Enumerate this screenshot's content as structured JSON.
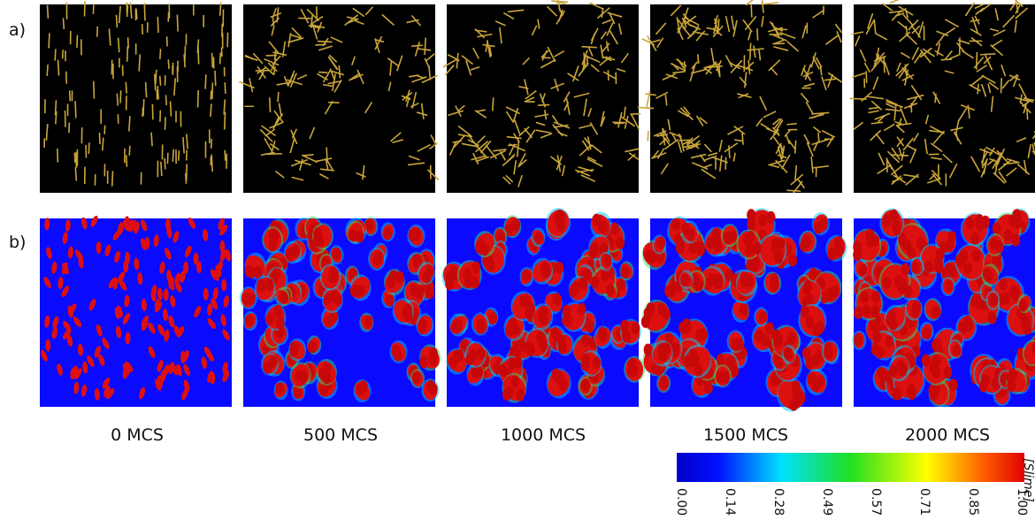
{
  "row_labels": [
    "a)",
    "b)"
  ],
  "column_labels": [
    "0 MCS",
    "500 MCS",
    "1000 MCS",
    "1500 MCS",
    "2000 MCS"
  ],
  "colorbar": {
    "label": "[Slime]",
    "ticks": [
      "0.00",
      "0.14",
      "0.28",
      "0.49",
      "0.57",
      "0.71",
      "0.85",
      "1.00"
    ]
  }
}
